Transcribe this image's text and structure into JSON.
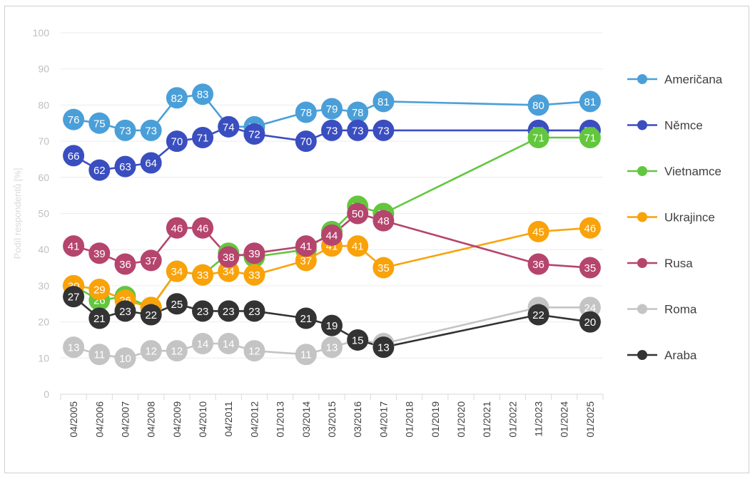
{
  "chart_data": {
    "type": "line",
    "title": "",
    "xlabel": "",
    "ylabel": "Podíl respondentů [%]",
    "ylim": [
      0,
      100
    ],
    "yticks": [
      "0",
      "10",
      "20",
      "30",
      "40",
      "50",
      "60",
      "70",
      "80",
      "90",
      "100"
    ],
    "grid": true,
    "legend_position": "right",
    "categories": [
      "04/2005",
      "04/2006",
      "04/2007",
      "04/2008",
      "04/2009",
      "04/2010",
      "04/2011",
      "04/2012",
      "01/2013",
      "03/2014",
      "03/2015",
      "03/2016",
      "04/2017",
      "01/2018",
      "01/2019",
      "01/2020",
      "01/2021",
      "01/2022",
      "11/2023",
      "01/2024",
      "01/2025"
    ],
    "series": [
      {
        "name": "Američana",
        "color": "#4a9fd8",
        "label_color": "#ffffff",
        "values": [
          76,
          75,
          73,
          73,
          82,
          83,
          74,
          74,
          null,
          78,
          79,
          78,
          81,
          null,
          null,
          null,
          null,
          null,
          80,
          null,
          81
        ]
      },
      {
        "name": "Němce",
        "color": "#3a4ec0",
        "label_color": "#ffffff",
        "values": [
          66,
          62,
          63,
          64,
          70,
          71,
          74,
          72,
          null,
          70,
          73,
          73,
          73,
          null,
          null,
          null,
          null,
          null,
          73,
          null,
          73
        ]
      },
      {
        "name": "Vietnamce",
        "color": "#62c73e",
        "label_color": "#ffffff",
        "values": [
          30,
          26,
          27,
          24,
          34,
          33,
          39,
          38,
          null,
          40,
          45,
          52,
          50,
          null,
          null,
          null,
          null,
          null,
          71,
          null,
          71
        ]
      },
      {
        "name": "Ukrajince",
        "color": "#f9a20a",
        "label_color": "#ffffff",
        "values": [
          30,
          29,
          26,
          24,
          34,
          33,
          34,
          33,
          null,
          37,
          41,
          41,
          35,
          null,
          null,
          null,
          null,
          null,
          45,
          null,
          46
        ]
      },
      {
        "name": "Rusa",
        "color": "#b5456d",
        "label_color": "#ffffff",
        "values": [
          41,
          39,
          36,
          37,
          46,
          46,
          38,
          39,
          null,
          41,
          44,
          50,
          48,
          null,
          null,
          null,
          null,
          null,
          36,
          null,
          35
        ]
      },
      {
        "name": "Roma",
        "color": "#c4c4c4",
        "label_color": "#ffffff",
        "values": [
          13,
          11,
          10,
          12,
          12,
          14,
          14,
          12,
          null,
          11,
          13,
          15,
          14,
          null,
          null,
          null,
          null,
          null,
          24,
          null,
          24
        ]
      },
      {
        "name": "Araba",
        "color": "#333333",
        "label_color": "#ffffff",
        "values": [
          27,
          21,
          23,
          22,
          25,
          23,
          23,
          23,
          null,
          21,
          19,
          15,
          13,
          null,
          null,
          null,
          null,
          null,
          22,
          null,
          20
        ]
      }
    ]
  }
}
